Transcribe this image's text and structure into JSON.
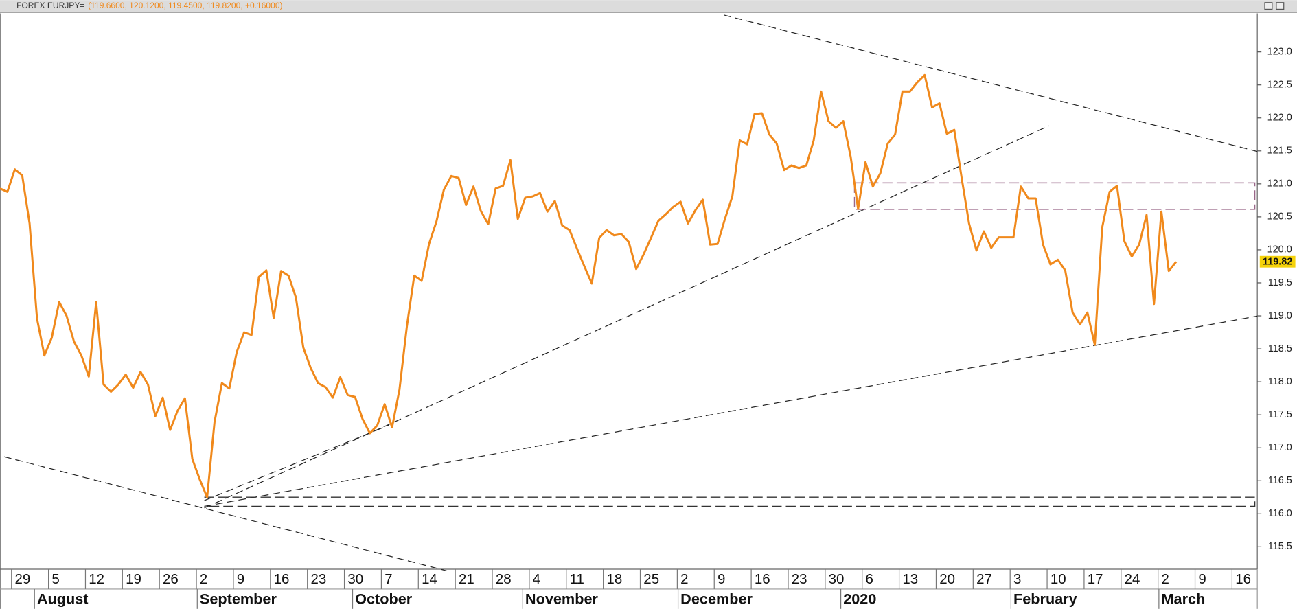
{
  "chart_data": {
    "type": "line",
    "title": "FOREX EURJPY=",
    "subtitle": "(119.6600, 120.1200, 119.4500, 119.8200, +0.16000)",
    "color": "#f0891c",
    "grid": false,
    "x": [
      "Jul 25",
      "Jul 26",
      "Jul 29",
      "Jul 30",
      "Jul 31",
      "Aug 1",
      "Aug 2",
      "Aug 5",
      "Aug 6",
      "Aug 7",
      "Aug 8",
      "Aug 9",
      "Aug 12",
      "Aug 13",
      "Aug 14",
      "Aug 15",
      "Aug 16",
      "Aug 19",
      "Aug 20",
      "Aug 21",
      "Aug 22",
      "Aug 23",
      "Aug 26",
      "Aug 27",
      "Aug 28",
      "Aug 29",
      "Aug 30",
      "Sep 2",
      "Sep 3",
      "Sep 4",
      "Sep 5",
      "Sep 6",
      "Sep 9",
      "Sep 10",
      "Sep 11",
      "Sep 12",
      "Sep 13",
      "Sep 16",
      "Sep 17",
      "Sep 18",
      "Sep 19",
      "Sep 20",
      "Sep 23",
      "Sep 24",
      "Sep 25",
      "Sep 26",
      "Sep 27",
      "Sep 30",
      "Oct 1",
      "Oct 2",
      "Oct 3",
      "Oct 4",
      "Oct 7",
      "Oct 8",
      "Oct 9",
      "Oct 10",
      "Oct 11",
      "Oct 14",
      "Oct 15",
      "Oct 16",
      "Oct 17",
      "Oct 18",
      "Oct 21",
      "Oct 22",
      "Oct 23",
      "Oct 24",
      "Oct 25",
      "Oct 28",
      "Oct 29",
      "Oct 30",
      "Oct 31",
      "Nov 1",
      "Nov 4",
      "Nov 5",
      "Nov 6",
      "Nov 7",
      "Nov 8",
      "Nov 11",
      "Nov 12",
      "Nov 13",
      "Nov 14",
      "Nov 15",
      "Nov 18",
      "Nov 19",
      "Nov 20",
      "Nov 21",
      "Nov 22",
      "Nov 25",
      "Nov 26",
      "Nov 27",
      "Nov 28",
      "Nov 29",
      "Dec 2",
      "Dec 3",
      "Dec 4",
      "Dec 5",
      "Dec 6",
      "Dec 9",
      "Dec 10",
      "Dec 11",
      "Dec 12",
      "Dec 13",
      "Dec 16",
      "Dec 17",
      "Dec 18",
      "Dec 19",
      "Dec 20",
      "Dec 23",
      "Dec 24",
      "Dec 25",
      "Dec 26",
      "Dec 27",
      "Dec 30",
      "Dec 31",
      "Jan 1",
      "Jan 2",
      "Jan 3",
      "Jan 6",
      "Jan 7",
      "Jan 8",
      "Jan 9",
      "Jan 10",
      "Jan 13",
      "Jan 14",
      "Jan 15",
      "Jan 16",
      "Jan 17",
      "Jan 20",
      "Jan 21",
      "Jan 22",
      "Jan 23",
      "Jan 24",
      "Jan 27",
      "Jan 28",
      "Jan 29",
      "Jan 30",
      "Jan 31",
      "Feb 3",
      "Feb 4",
      "Feb 5",
      "Feb 6",
      "Feb 7",
      "Feb 10",
      "Feb 11",
      "Feb 12",
      "Feb 13",
      "Feb 14",
      "Feb 17",
      "Feb 18",
      "Feb 19",
      "Feb 20",
      "Feb 21",
      "Feb 24",
      "Feb 25",
      "Feb 26",
      "Feb 27",
      "Feb 28",
      "Mar 2",
      "Mar 3",
      "Mar 4",
      "Mar 5",
      "Mar 6",
      "Mar 9",
      "Mar 10",
      "Mar 11",
      "Mar 12",
      "Mar 13",
      "Mar 16"
    ],
    "values": [
      120.93,
      120.88,
      121.22,
      121.13,
      120.4,
      118.96,
      118.4,
      118.67,
      119.21,
      119.0,
      118.61,
      118.4,
      118.08,
      119.21,
      117.96,
      117.85,
      117.96,
      118.11,
      117.91,
      118.15,
      117.96,
      117.48,
      117.76,
      117.27,
      117.56,
      117.75,
      116.83,
      116.52,
      116.25,
      117.39,
      117.98,
      117.9,
      118.45,
      118.75,
      118.71,
      119.59,
      119.69,
      118.97,
      119.68,
      119.61,
      119.28,
      118.52,
      118.21,
      117.98,
      117.92,
      117.76,
      118.07,
      117.8,
      117.77,
      117.44,
      117.22,
      117.34,
      117.66,
      117.31,
      117.88,
      118.84,
      119.61,
      119.53,
      120.09,
      120.43,
      120.91,
      121.12,
      121.09,
      120.68,
      120.96,
      120.59,
      120.39,
      120.93,
      120.97,
      121.36,
      120.47,
      120.79,
      120.81,
      120.86,
      120.58,
      120.74,
      120.37,
      120.3,
      120.02,
      119.75,
      119.49,
      120.18,
      120.3,
      120.22,
      120.24,
      120.12,
      119.71,
      119.93,
      120.18,
      120.44,
      120.54,
      120.65,
      120.73,
      120.4,
      120.6,
      120.76,
      120.08,
      120.09,
      120.47,
      120.81,
      121.66,
      121.6,
      122.06,
      122.07,
      121.75,
      121.61,
      121.21,
      121.28,
      121.24,
      121.28,
      121.66,
      122.4,
      121.95,
      121.85,
      121.95,
      121.41,
      120.62,
      121.33,
      120.96,
      121.16,
      121.61,
      121.75,
      122.4,
      122.4,
      122.54,
      122.65,
      122.16,
      122.22,
      121.76,
      121.82,
      121.09,
      120.4,
      119.99,
      120.28,
      120.03,
      120.19,
      120.19,
      120.19,
      120.96,
      120.78,
      120.78,
      120.08,
      119.78,
      119.85,
      119.69,
      119.05,
      118.87,
      119.05,
      118.56,
      120.34,
      120.88,
      120.97,
      120.13,
      119.9,
      120.08,
      120.53,
      119.18,
      120.58,
      119.68,
      119.82,
      null,
      null,
      null,
      null,
      null,
      null,
      null,
      null
    ],
    "last_value_label": "119.82",
    "ylim": [
      115.16,
      123.56
    ],
    "yticks": [
      115.5,
      {
        "value": 116,
        "label": "116.0"
      },
      116.5,
      {
        "value": 117,
        "label": "117.0"
      },
      117.5,
      {
        "value": 118,
        "label": "118.0"
      },
      118.5,
      {
        "value": 119,
        "label": "119.0"
      },
      119.5,
      {
        "value": 120,
        "label": "120.0"
      },
      120.5,
      {
        "value": 121,
        "label": "121.0"
      },
      121.5,
      {
        "value": 122,
        "label": "122.0"
      },
      122.5,
      {
        "value": 123,
        "label": "123.0"
      }
    ],
    "xticks": [
      {
        "value": "Jul 29",
        "label": "29"
      },
      {
        "value": "Aug 5",
        "label": "5"
      },
      {
        "value": "Aug 12",
        "label": "12"
      },
      {
        "value": "Aug 19",
        "label": "19"
      },
      {
        "value": "Aug 26",
        "label": "26"
      },
      {
        "value": "Sep 2",
        "label": "2"
      },
      {
        "value": "Sep 9",
        "label": "9"
      },
      {
        "value": "Sep 16",
        "label": "16"
      },
      {
        "value": "Sep 23",
        "label": "23"
      },
      {
        "value": "Sep 30",
        "label": "30"
      },
      {
        "value": "Oct 7",
        "label": "7"
      },
      {
        "value": "Oct 14",
        "label": "14"
      },
      {
        "value": "Oct 21",
        "label": "21"
      },
      {
        "value": "Oct 28",
        "label": "28"
      },
      {
        "value": "Nov 4",
        "label": "4"
      },
      {
        "value": "Nov 11",
        "label": "11"
      },
      {
        "value": "Nov 18",
        "label": "18"
      },
      {
        "value": "Nov 25",
        "label": "25"
      },
      {
        "value": "Dec 2",
        "label": "2"
      },
      {
        "value": "Dec 9",
        "label": "9"
      },
      {
        "value": "Dec 16",
        "label": "16"
      },
      {
        "value": "Dec 23",
        "label": "23"
      },
      {
        "value": "Dec 30",
        "label": "30"
      },
      {
        "value": "Jan 6",
        "label": "6"
      },
      {
        "value": "Jan 13",
        "label": "13"
      },
      {
        "value": "Jan 20",
        "label": "20"
      },
      {
        "value": "Jan 27",
        "label": "27"
      },
      {
        "value": "Feb 3",
        "label": "3"
      },
      {
        "value": "Feb 10",
        "label": "10"
      },
      {
        "value": "Feb 17",
        "label": "17"
      },
      {
        "value": "Feb 24",
        "label": "24"
      },
      {
        "value": "Mar 2",
        "label": "2"
      },
      {
        "value": "Mar 9",
        "label": "9"
      },
      {
        "value": "Mar 16",
        "label": "16"
      }
    ],
    "month_ticks": [
      {
        "value": "Aug 1",
        "label": "August"
      },
      {
        "value": "Sep 2",
        "label": "September"
      },
      {
        "value": "Oct 1",
        "label": "October"
      },
      {
        "value": "Nov 1",
        "label": "November"
      },
      {
        "value": "Dec 2",
        "label": "December"
      },
      {
        "value": "Jan 1",
        "label": "2020"
      },
      {
        "value": "Feb 3",
        "label": "February"
      },
      {
        "value": "Mar 2",
        "label": "March"
      }
    ]
  }
}
